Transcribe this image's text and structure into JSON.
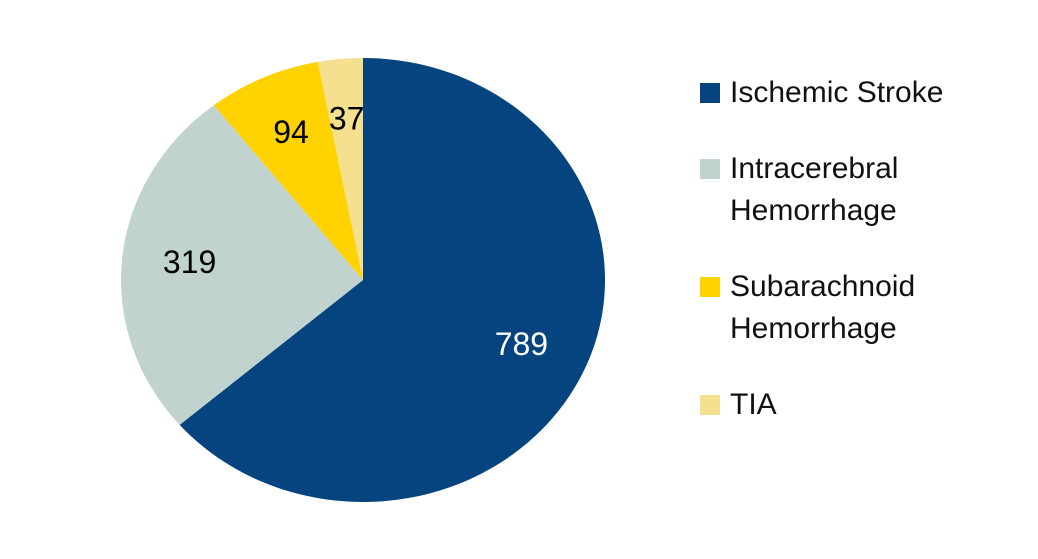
{
  "chart_data": {
    "type": "pie",
    "categories": [
      "Ischemic Stroke",
      "Intracerebral Hemorrhage",
      "Subarachnoid Hemorrhage",
      "TIA"
    ],
    "values": [
      789,
      319,
      94,
      37
    ],
    "colors": [
      "#05447f",
      "#c1d3cf",
      "#ffd200",
      "#f5e08f"
    ],
    "legend": "right"
  }
}
